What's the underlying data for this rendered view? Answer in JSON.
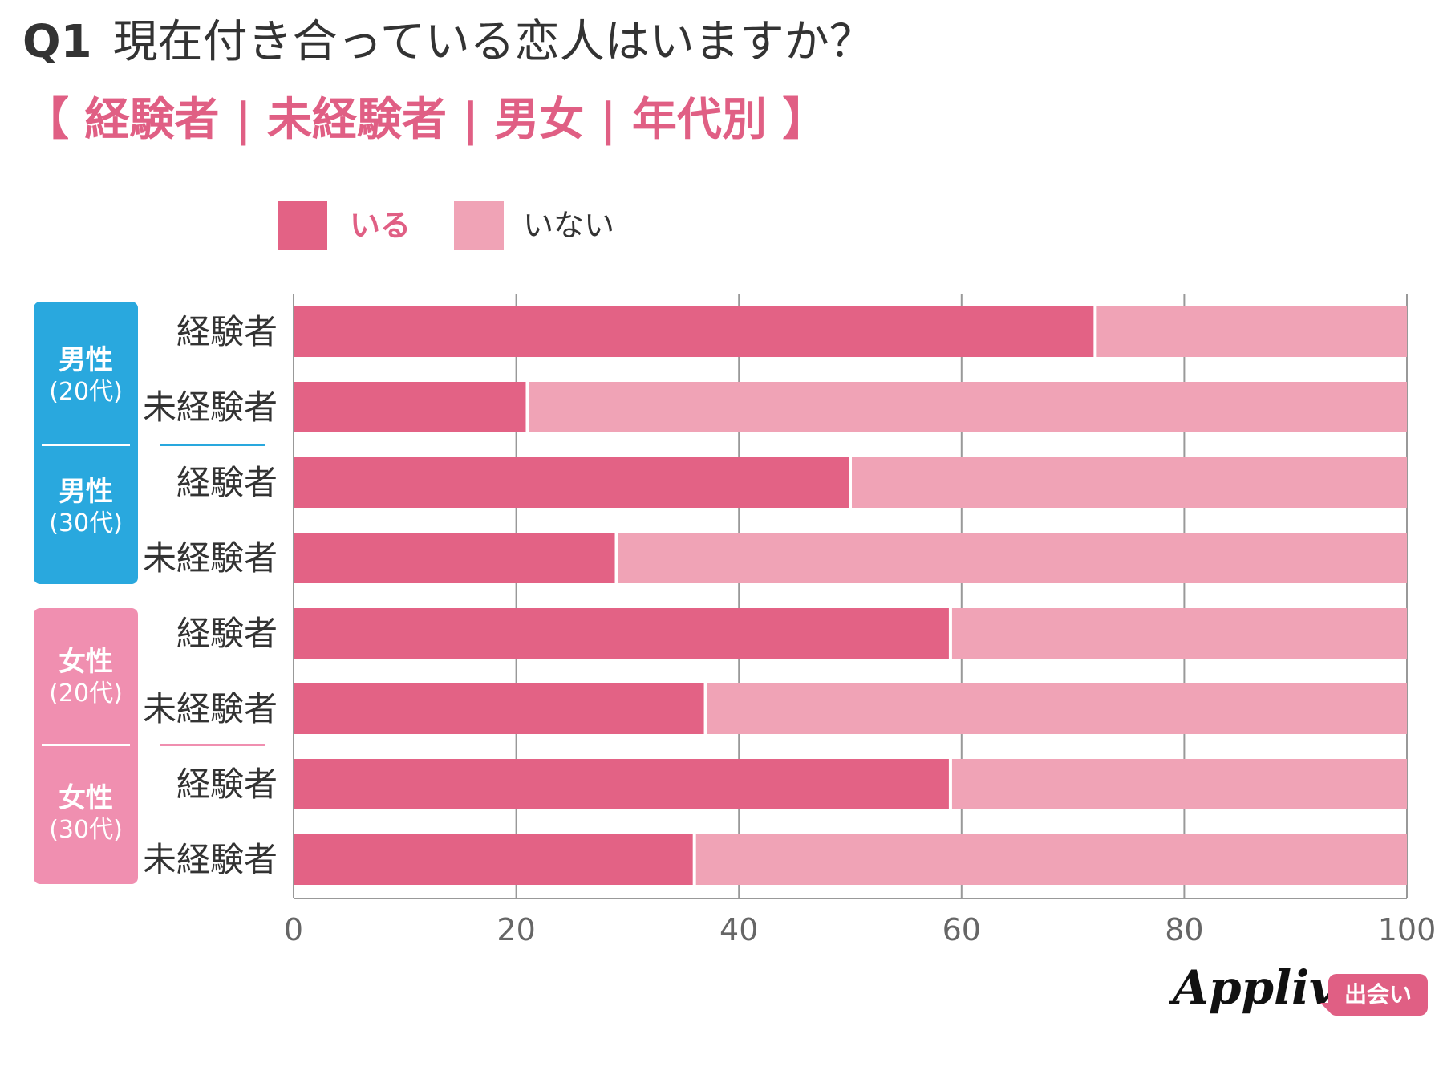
{
  "title": {
    "number": "Q1",
    "question": "現在付き合っている恋人はいますか？"
  },
  "subtitle": "【 経験者 | 未経験者 | 男女 | 年代別 】",
  "legend": [
    {
      "label": "いる",
      "color": "#e36285"
    },
    {
      "label": "いない",
      "color": "#f0a3b6"
    }
  ],
  "groups": [
    {
      "name": "男性",
      "age": "(20代)"
    },
    {
      "name": "男性",
      "age": "(30代)"
    },
    {
      "name": "女性",
      "age": "(20代)"
    },
    {
      "name": "女性",
      "age": "(30代)"
    }
  ],
  "colors": {
    "male": "#29a8de",
    "female": "#f08fb0",
    "present": "#e36285",
    "absent": "#f0a3b6",
    "accent": "#e05f84",
    "grid": "#999999"
  },
  "chart_data": {
    "type": "bar",
    "orientation": "horizontal",
    "stacked": true,
    "categories": [
      "経験者",
      "未経験者",
      "経験者",
      "未経験者",
      "経験者",
      "未経験者",
      "経験者",
      "未経験者"
    ],
    "series": [
      {
        "name": "いる",
        "values": [
          72,
          21,
          50,
          29,
          59,
          37,
          59,
          36
        ]
      },
      {
        "name": "いない",
        "values": [
          28,
          79,
          50,
          71,
          41,
          63,
          41,
          64
        ]
      }
    ],
    "xlim": [
      0,
      100
    ],
    "xticks": [
      0,
      20,
      40,
      60,
      80,
      100
    ],
    "grid": true
  },
  "brand": {
    "name": "Appliv",
    "badge": "出会い"
  }
}
